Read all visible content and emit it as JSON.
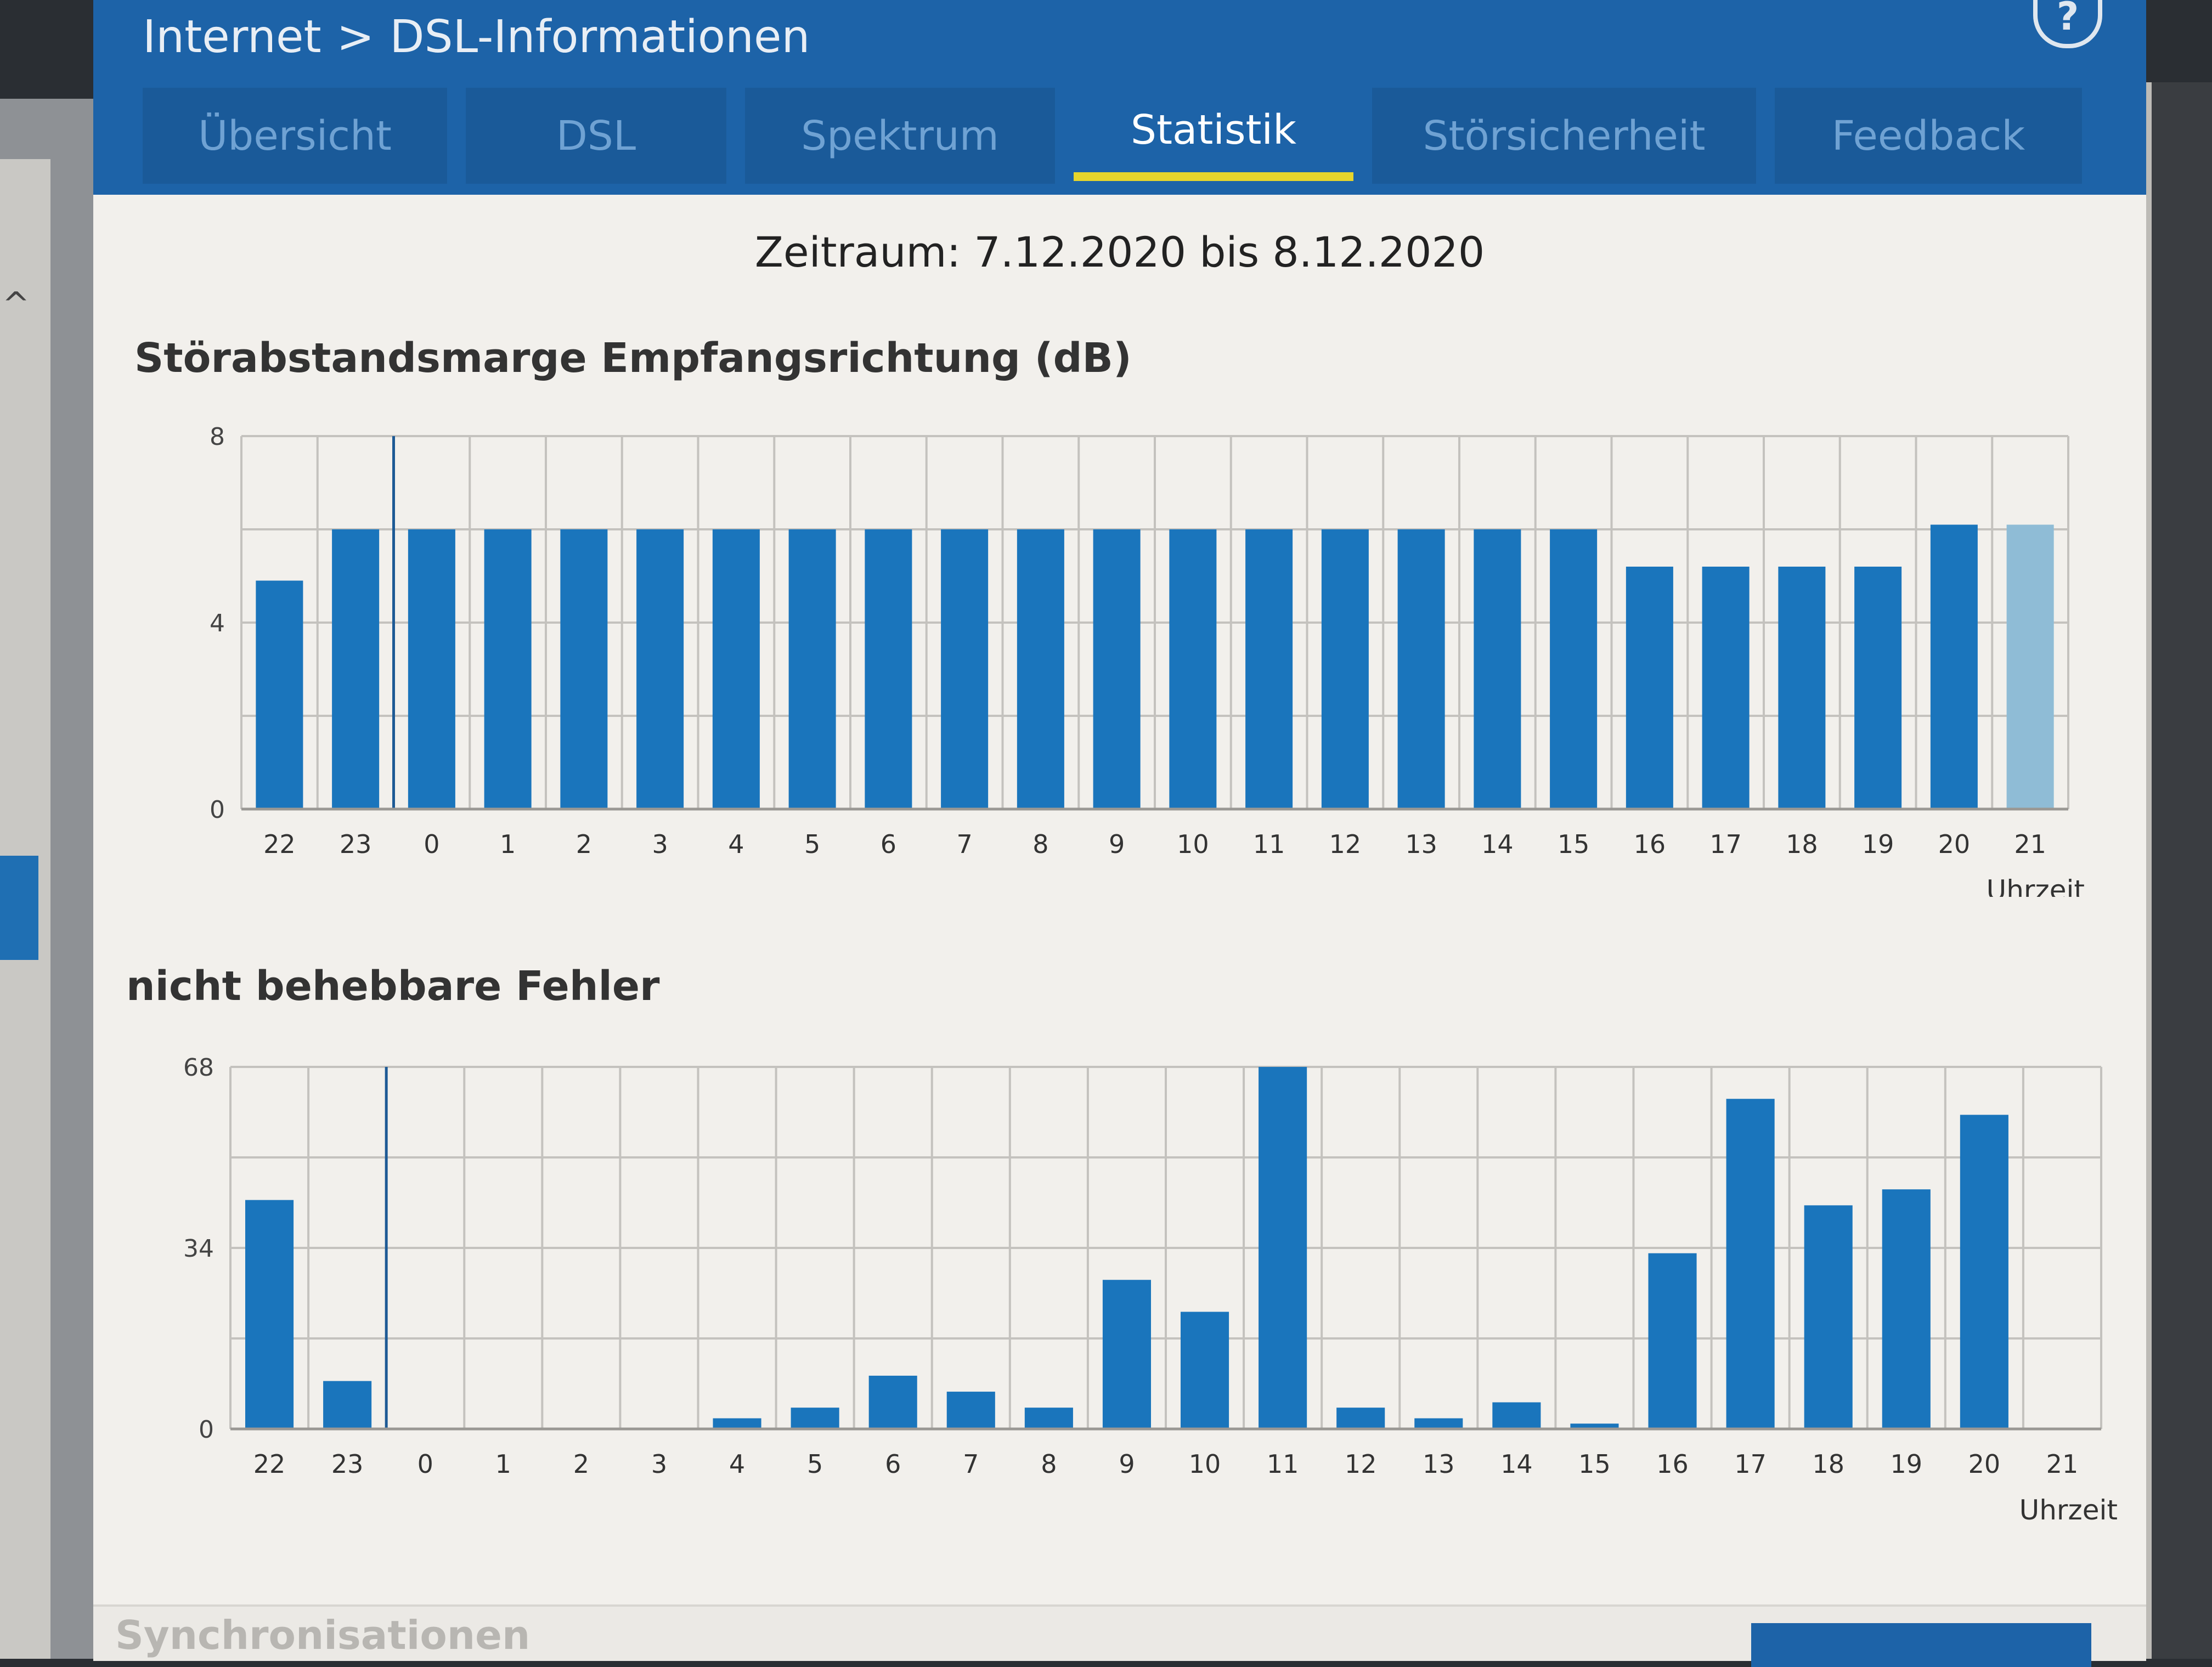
{
  "breadcrumb": {
    "section": "Internet",
    "separator": ">",
    "page": "DSL-Informationen"
  },
  "help": {
    "icon": "help-icon",
    "label": "?"
  },
  "tabs": [
    {
      "label": "Übersicht",
      "active": false
    },
    {
      "label": "DSL",
      "active": false
    },
    {
      "label": "Spektrum",
      "active": false
    },
    {
      "label": "Statistik",
      "active": true
    },
    {
      "label": "Störsicherheit",
      "active": false
    },
    {
      "label": "Feedback",
      "active": false
    }
  ],
  "period": "Zeitraum: 7.12.2020 bis 8.12.2020",
  "sections": {
    "next_title": "Synchronisationen"
  },
  "colors": {
    "accent": "#1d63a8",
    "bar": "#1a75bc",
    "bar_current": "#8fbcd6",
    "tab_indicator": "#e6d52c"
  },
  "chart_data": [
    {
      "type": "bar",
      "title": "Störabstandsmarge Empfangsrichtung (dB)",
      "xlabel": "Uhrzeit",
      "ylabel": "",
      "categories": [
        "22",
        "23",
        "0",
        "1",
        "2",
        "3",
        "4",
        "5",
        "6",
        "7",
        "8",
        "9",
        "10",
        "11",
        "12",
        "13",
        "14",
        "15",
        "16",
        "17",
        "18",
        "19",
        "20",
        "21"
      ],
      "values": [
        4.9,
        6.0,
        6.0,
        6.0,
        6.0,
        6.0,
        6.0,
        6.0,
        6.0,
        6.0,
        6.0,
        6.0,
        6.0,
        6.0,
        6.0,
        6.0,
        6.0,
        6.0,
        5.2,
        5.2,
        5.2,
        5.2,
        6.1,
        6.1
      ],
      "current_category": "21",
      "ylim": [
        0,
        8
      ],
      "yticks": [
        0,
        4,
        8
      ],
      "grid": true,
      "legend": "none"
    },
    {
      "type": "bar",
      "title": "nicht behebbare Fehler",
      "xlabel": "Uhrzeit",
      "ylabel": "",
      "categories": [
        "22",
        "23",
        "0",
        "1",
        "2",
        "3",
        "4",
        "5",
        "6",
        "7",
        "8",
        "9",
        "10",
        "11",
        "12",
        "13",
        "14",
        "15",
        "16",
        "17",
        "18",
        "19",
        "20",
        "21"
      ],
      "values": [
        43,
        9,
        0,
        0,
        0,
        0,
        2,
        4,
        10,
        7,
        4,
        28,
        22,
        68,
        4,
        2,
        5,
        1,
        33,
        62,
        42,
        45,
        59,
        0
      ],
      "ylim": [
        0,
        68
      ],
      "yticks": [
        0,
        34,
        68
      ],
      "grid": true,
      "legend": "none"
    }
  ]
}
